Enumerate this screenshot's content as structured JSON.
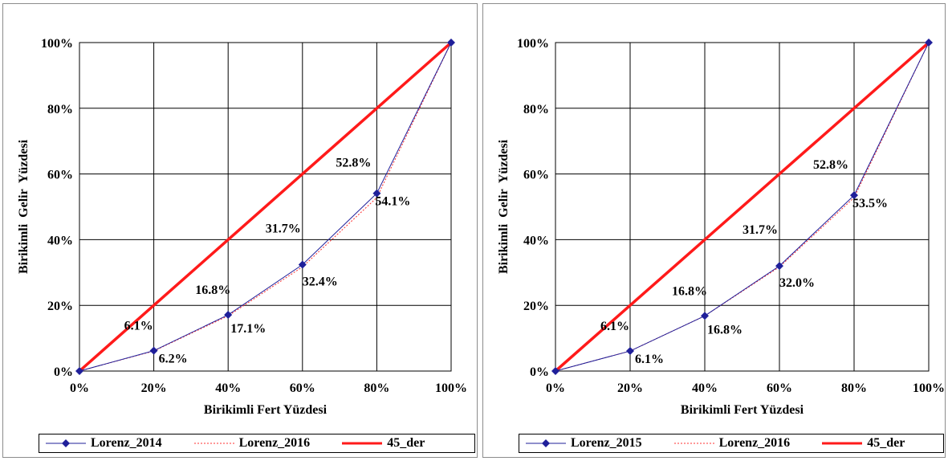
{
  "chart_data": [
    {
      "type": "line",
      "xlabel": "Birikimli Fert Yüzdesi",
      "ylabel": "Birikimli  Gelir  Yüzdesi",
      "xlim": [
        0,
        100
      ],
      "ylim": [
        0,
        100
      ],
      "x_ticks": [
        "0%",
        "20%",
        "40%",
        "60%",
        "80%",
        "100%"
      ],
      "y_ticks": [
        "0%",
        "20%",
        "40%",
        "60%",
        "80%",
        "100%"
      ],
      "grid": true,
      "legend_position": "bottom",
      "x": [
        0,
        20,
        40,
        60,
        80,
        100
      ],
      "series": [
        {
          "name": "Lorenz_2014",
          "values": [
            0,
            6.2,
            17.1,
            32.4,
            54.1,
            100
          ],
          "color": "#1f1f9a",
          "style": "line-diamond"
        },
        {
          "name": "Lorenz_2016",
          "values": [
            0,
            6.1,
            16.8,
            31.7,
            52.8,
            100
          ],
          "color": "#ff3030",
          "style": "dashed"
        },
        {
          "name": "45_der",
          "values": [
            0,
            20,
            40,
            60,
            80,
            100
          ],
          "color": "#ff1a1a",
          "style": "thick"
        }
      ],
      "annotations": [
        {
          "text": "6.1%",
          "x": 20,
          "side": "above"
        },
        {
          "text": "6.2%",
          "x": 20,
          "side": "below"
        },
        {
          "text": "16.8%",
          "x": 40,
          "side": "above"
        },
        {
          "text": "17.1%",
          "x": 40,
          "side": "below"
        },
        {
          "text": "31.7%",
          "x": 60,
          "side": "above"
        },
        {
          "text": "32.4%",
          "x": 60,
          "side": "below"
        },
        {
          "text": "52.8%",
          "x": 80,
          "side": "above"
        },
        {
          "text": "54.1%",
          "x": 80,
          "side": "below"
        }
      ]
    },
    {
      "type": "line",
      "xlabel": "Birikimli Fert Yüzdesi",
      "ylabel": "Birikimli  Gelir  Yüzdesi",
      "xlim": [
        0,
        100
      ],
      "ylim": [
        0,
        100
      ],
      "x_ticks": [
        "0%",
        "20%",
        "40%",
        "60%",
        "80%",
        "100%"
      ],
      "y_ticks": [
        "0%",
        "20%",
        "40%",
        "60%",
        "80%",
        "100%"
      ],
      "grid": true,
      "legend_position": "bottom",
      "x": [
        0,
        20,
        40,
        60,
        80,
        100
      ],
      "series": [
        {
          "name": "Lorenz_2015",
          "values": [
            0,
            6.1,
            16.8,
            32.0,
            53.5,
            100
          ],
          "color": "#1f1f9a",
          "style": "line-diamond"
        },
        {
          "name": "Lorenz_2016",
          "values": [
            0,
            6.1,
            16.8,
            31.7,
            52.8,
            100
          ],
          "color": "#ff3030",
          "style": "dashed"
        },
        {
          "name": "45_der",
          "values": [
            0,
            20,
            40,
            60,
            80,
            100
          ],
          "color": "#ff1a1a",
          "style": "thick"
        }
      ],
      "annotations": [
        {
          "text": "6.1%",
          "x": 20,
          "side": "above"
        },
        {
          "text": "6.1%",
          "x": 20,
          "side": "below"
        },
        {
          "text": "16.8%",
          "x": 40,
          "side": "above"
        },
        {
          "text": "16.8%",
          "x": 40,
          "side": "below"
        },
        {
          "text": "31.7%",
          "x": 60,
          "side": "above"
        },
        {
          "text": "32.0%",
          "x": 60,
          "side": "below"
        },
        {
          "text": "52.8%",
          "x": 80,
          "side": "above"
        },
        {
          "text": "53.5%",
          "x": 80,
          "side": "below"
        }
      ]
    }
  ]
}
